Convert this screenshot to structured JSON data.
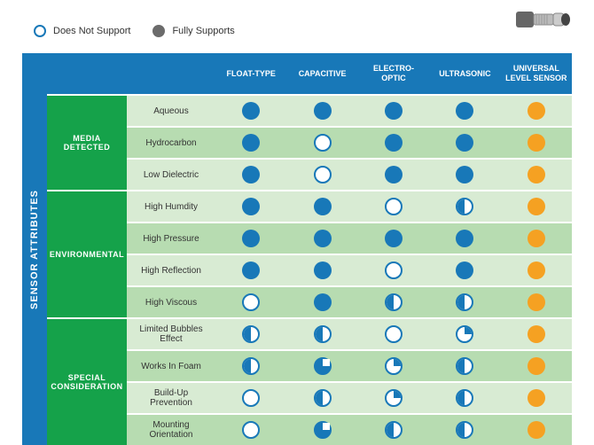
{
  "legend": {
    "dns": "Does Not Support",
    "full": "Fully Supports"
  },
  "sidebar": "SENSOR ATTRIBUTES",
  "columns": [
    "FLOAT-TYPE",
    "CAPACITIVE",
    "ELECTRO-OPTIC",
    "ULTRASONIC",
    "UNIVERSAL LEVEL SENSOR"
  ],
  "colors": {
    "header": "#1878b8",
    "group": "#15a24a",
    "rowEven": "#d8ebd3",
    "rowOdd": "#b7dcb1",
    "blue": "#1878b8",
    "orange": "#f5a122"
  },
  "groups": [
    {
      "name": "MEDIA DETECTED",
      "rows": [
        {
          "label": "Aqueous",
          "v": [
            "full-b",
            "full-b",
            "full-b",
            "full-b",
            "full-o"
          ]
        },
        {
          "label": "Hydrocarbon",
          "v": [
            "full-b",
            "open",
            "full-b",
            "full-b",
            "full-o"
          ]
        },
        {
          "label": "Low Dielectric",
          "v": [
            "full-b",
            "open",
            "full-b",
            "full-b",
            "full-o"
          ]
        }
      ]
    },
    {
      "name": "ENVIRONMENTAL",
      "rows": [
        {
          "label": "High Humdity",
          "v": [
            "full-b",
            "full-b",
            "open",
            "half",
            "full-o"
          ]
        },
        {
          "label": "High Pressure",
          "v": [
            "full-b",
            "full-b",
            "full-b",
            "full-b",
            "full-o"
          ]
        },
        {
          "label": "High Reflection",
          "v": [
            "full-b",
            "full-b",
            "open",
            "full-b",
            "full-o"
          ]
        },
        {
          "label": "High Viscous",
          "v": [
            "open",
            "full-b",
            "half",
            "half",
            "full-o"
          ]
        }
      ]
    },
    {
      "name": "SPECIAL CONSIDERATION",
      "rows": [
        {
          "label": "Limited Bubbles Effect",
          "v": [
            "half",
            "half",
            "open",
            "q",
            "full-o"
          ]
        },
        {
          "label": "Works In Foam",
          "v": [
            "half",
            "tq",
            "q",
            "half",
            "full-o"
          ]
        },
        {
          "label": "Build-Up Prevention",
          "v": [
            "open",
            "half",
            "q",
            "half",
            "full-o"
          ]
        },
        {
          "label": "Mounting Orientation",
          "v": [
            "open",
            "tq",
            "half",
            "half",
            "full-o"
          ]
        }
      ]
    }
  ]
}
